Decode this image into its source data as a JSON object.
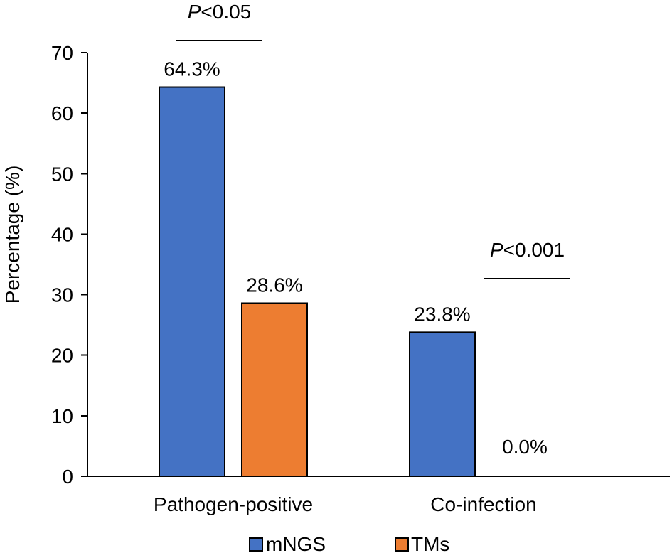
{
  "chart_data": {
    "type": "bar",
    "title": "",
    "xlabel": "",
    "ylabel": "Percentage (%)",
    "ylim": [
      0,
      70
    ],
    "yticks": [
      0,
      10,
      20,
      30,
      40,
      50,
      60,
      70
    ],
    "categories": [
      "Pathogen-positive",
      "Co-infection"
    ],
    "series": [
      {
        "name": "mNGS",
        "color": "#4472C4",
        "values": [
          64.3,
          23.8
        ],
        "labels": [
          "64.3%",
          "23.8%"
        ]
      },
      {
        "name": "TMs",
        "color": "#ED7D31",
        "values": [
          28.6,
          0.0
        ],
        "labels": [
          "28.6%",
          "0.0%"
        ]
      }
    ],
    "annotations": [
      {
        "category_index": 0,
        "p_symbol": "P",
        "p_rest": "<0.05"
      },
      {
        "category_index": 1,
        "p_symbol": "P",
        "p_rest": "<0.001"
      }
    ],
    "legend": {
      "position": "bottom",
      "entries": [
        "mNGS",
        "TMs"
      ]
    },
    "grid": false
  }
}
